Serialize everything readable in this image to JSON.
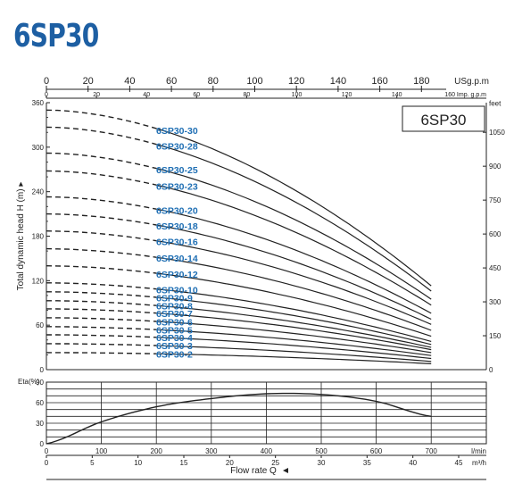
{
  "header": {
    "title": "6SP30"
  },
  "chart_data": {
    "type": "line",
    "model_label": "6SP30",
    "colors": {
      "title": "#1d5fa3",
      "curve_label": "#1f6fb4",
      "line": "#222222"
    },
    "top_axes": {
      "usgpm": {
        "unit": "USg.p.m",
        "ticks": [
          "0",
          "20",
          "40",
          "60",
          "80",
          "100",
          "120",
          "140",
          "160",
          "180"
        ]
      },
      "impgpm": {
        "unit": "160 Imp. g.p.m",
        "ticks": [
          "0",
          "20",
          "40",
          "60",
          "80",
          "100",
          "120",
          "140"
        ]
      }
    },
    "head": {
      "ylabel": "Total dynamic head H (m)",
      "ylim": [
        0,
        360
      ],
      "yticks": [
        "0",
        "60",
        "120",
        "180",
        "240",
        "300",
        "360"
      ],
      "feet_axis": {
        "unit": "feet",
        "ticks": [
          "0",
          "150",
          "300",
          "450",
          "600",
          "750",
          "900",
          "1050"
        ]
      },
      "xlim": [
        0,
        700
      ],
      "curve_start": 200,
      "curve_end": 700,
      "series": [
        {
          "name": "6SP30-30",
          "shutoff": 350,
          "end": 113
        },
        {
          "name": "6SP30-28",
          "shutoff": 327,
          "end": 106
        },
        {
          "name": "6SP30-25",
          "shutoff": 292,
          "end": 95
        },
        {
          "name": "6SP30-23",
          "shutoff": 268,
          "end": 87
        },
        {
          "name": "6SP30-20",
          "shutoff": 233,
          "end": 76
        },
        {
          "name": "6SP30-18",
          "shutoff": 210,
          "end": 68
        },
        {
          "name": "6SP30-16",
          "shutoff": 187,
          "end": 61
        },
        {
          "name": "6SP30-14",
          "shutoff": 163,
          "end": 53
        },
        {
          "name": "6SP30-12",
          "shutoff": 140,
          "end": 45
        },
        {
          "name": "6SP30-10",
          "shutoff": 117,
          "end": 38
        },
        {
          "name": "6SP30-9",
          "shutoff": 105,
          "end": 34
        },
        {
          "name": "6SP30-8",
          "shutoff": 93,
          "end": 30
        },
        {
          "name": "6SP30-7",
          "shutoff": 82,
          "end": 27
        },
        {
          "name": "6SP30-6",
          "shutoff": 70,
          "end": 23
        },
        {
          "name": "6SP30-5",
          "shutoff": 58,
          "end": 19
        },
        {
          "name": "6SP30-4",
          "shutoff": 47,
          "end": 15
        },
        {
          "name": "6SP30-3",
          "shutoff": 35,
          "end": 11
        },
        {
          "name": "6SP30-2",
          "shutoff": 23,
          "end": 8
        }
      ]
    },
    "efficiency": {
      "ylabel": "Eta(%)",
      "ylim": [
        0,
        90
      ],
      "yticks": [
        "0",
        "30",
        "60",
        "90"
      ],
      "x": [
        0,
        100,
        200,
        300,
        400,
        500,
        600,
        700
      ],
      "values": [
        0,
        32,
        54,
        66,
        73,
        72,
        62,
        40
      ]
    },
    "bottom_axes": {
      "lmin": {
        "unit": "l/min",
        "ticks": [
          "0",
          "100",
          "200",
          "300",
          "400",
          "500",
          "600",
          "700"
        ]
      },
      "m3h": {
        "unit": "m³/h",
        "ticks": [
          "0",
          "5",
          "10",
          "15",
          "20",
          "25",
          "30",
          "35",
          "40",
          "45"
        ]
      },
      "xlabel": "Flow rate Q"
    }
  }
}
